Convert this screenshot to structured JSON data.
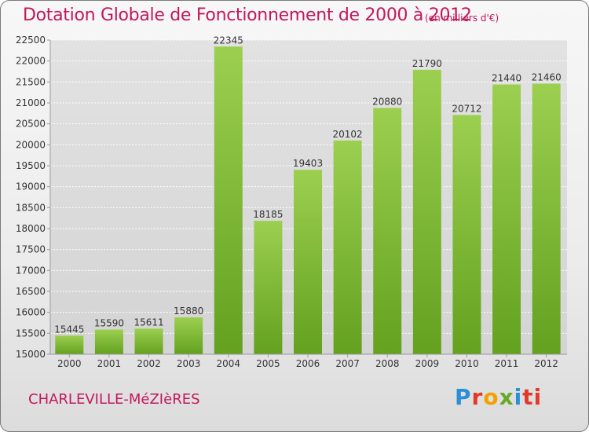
{
  "title": "Dotation Globale de Fonctionnement de 2000 à 2012",
  "subtitle": "(en milliers d'€)",
  "town": "CHARLEVILLE-MéZIèRES",
  "logo": {
    "icon": "proxiti-logo-icon",
    "letters": [
      "P",
      "r",
      "o",
      "x",
      "i",
      "ti"
    ]
  },
  "chart_data": {
    "type": "bar",
    "title": "Dotation Globale de Fonctionnement de 2000 à 2012",
    "subtitle": "(en milliers d'€)",
    "categories": [
      "2000",
      "2001",
      "2002",
      "2003",
      "2004",
      "2005",
      "2006",
      "2007",
      "2008",
      "2009",
      "2010",
      "2011",
      "2012"
    ],
    "values": [
      15445,
      15590,
      15611,
      15880,
      22345,
      18185,
      19403,
      20102,
      20880,
      21790,
      20712,
      21440,
      21460
    ],
    "ylim": [
      15000,
      22500
    ],
    "yticks": [
      "15000",
      "15500",
      "16000",
      "16500",
      "17000",
      "17500",
      "18000",
      "18500",
      "19000",
      "19500",
      "20000",
      "20500",
      "21000",
      "21500",
      "22000",
      "22500"
    ],
    "grid": true,
    "legend": "none",
    "colors": {
      "bar_light": "#9ccf50",
      "bar_dark": "#63a11f",
      "text": "#c2185b",
      "grid": "#ffffff"
    }
  }
}
